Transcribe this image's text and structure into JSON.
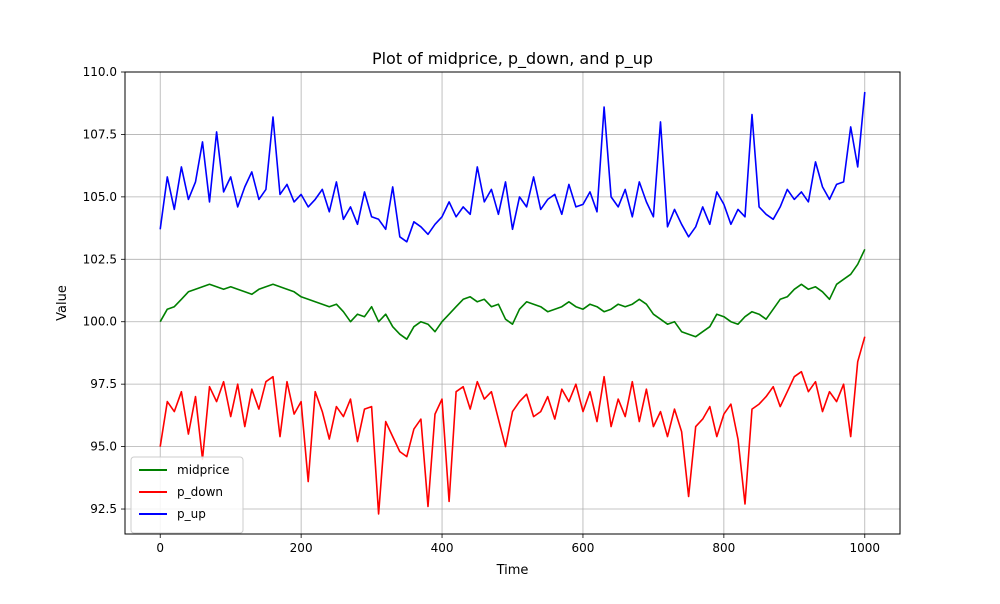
{
  "chart_data": {
    "type": "line",
    "title": "Plot of midprice, p_down, and p_up",
    "xlabel": "Time",
    "ylabel": "Value",
    "xlim": [
      -50,
      1050
    ],
    "ylim": [
      91.5,
      110.0
    ],
    "xticks": [
      0,
      200,
      400,
      600,
      800,
      1000
    ],
    "xtick_labels": [
      "0",
      "200",
      "400",
      "600",
      "800",
      "1000"
    ],
    "yticks": [
      92.5,
      95.0,
      97.5,
      100.0,
      102.5,
      105.0,
      107.5,
      110.0
    ],
    "ytick_labels": [
      "92.5",
      "95.0",
      "97.5",
      "100.0",
      "102.5",
      "105.0",
      "107.5",
      "110.0"
    ],
    "grid": true,
    "legend_position": "lower-left",
    "series": [
      {
        "name": "midprice",
        "color": "#008000",
        "x": [
          0,
          10,
          20,
          30,
          40,
          50,
          60,
          70,
          80,
          90,
          100,
          110,
          120,
          130,
          140,
          150,
          160,
          170,
          180,
          190,
          200,
          210,
          220,
          230,
          240,
          250,
          260,
          270,
          280,
          290,
          300,
          310,
          320,
          330,
          340,
          350,
          360,
          370,
          380,
          390,
          400,
          410,
          420,
          430,
          440,
          450,
          460,
          470,
          480,
          490,
          500,
          510,
          520,
          530,
          540,
          550,
          560,
          570,
          580,
          590,
          600,
          610,
          620,
          630,
          640,
          650,
          660,
          670,
          680,
          690,
          700,
          710,
          720,
          730,
          740,
          750,
          760,
          770,
          780,
          790,
          800,
          810,
          820,
          830,
          840,
          850,
          860,
          870,
          880,
          890,
          900,
          910,
          920,
          930,
          940,
          950,
          960,
          970,
          980,
          990,
          1000
        ],
        "values": [
          100.0,
          100.5,
          100.6,
          100.9,
          101.2,
          101.3,
          101.4,
          101.5,
          101.4,
          101.3,
          101.4,
          101.3,
          101.2,
          101.1,
          101.3,
          101.4,
          101.5,
          101.4,
          101.3,
          101.2,
          101.0,
          100.9,
          100.8,
          100.7,
          100.6,
          100.7,
          100.4,
          100.0,
          100.3,
          100.2,
          100.6,
          100.0,
          100.3,
          99.8,
          99.5,
          99.3,
          99.8,
          100.0,
          99.9,
          99.6,
          100.0,
          100.3,
          100.6,
          100.9,
          101.0,
          100.8,
          100.9,
          100.6,
          100.7,
          100.1,
          99.9,
          100.5,
          100.8,
          100.7,
          100.6,
          100.4,
          100.5,
          100.6,
          100.8,
          100.6,
          100.5,
          100.7,
          100.6,
          100.4,
          100.5,
          100.7,
          100.6,
          100.7,
          100.9,
          100.7,
          100.3,
          100.1,
          99.9,
          100.0,
          99.6,
          99.5,
          99.4,
          99.6,
          99.8,
          100.3,
          100.2,
          100.0,
          99.9,
          100.2,
          100.4,
          100.3,
          100.1,
          100.5,
          100.9,
          101.0,
          101.3,
          101.5,
          101.3,
          101.4,
          101.2,
          100.9,
          101.5,
          101.7,
          101.9,
          102.3,
          102.9
        ]
      },
      {
        "name": "p_down",
        "color": "#ff0000",
        "x": [
          0,
          10,
          20,
          30,
          40,
          50,
          60,
          70,
          80,
          90,
          100,
          110,
          120,
          130,
          140,
          150,
          160,
          170,
          180,
          190,
          200,
          210,
          220,
          230,
          240,
          250,
          260,
          270,
          280,
          290,
          300,
          310,
          320,
          330,
          340,
          350,
          360,
          370,
          380,
          390,
          400,
          410,
          420,
          430,
          440,
          450,
          460,
          470,
          480,
          490,
          500,
          510,
          520,
          530,
          540,
          550,
          560,
          570,
          580,
          590,
          600,
          610,
          620,
          630,
          640,
          650,
          660,
          670,
          680,
          690,
          700,
          710,
          720,
          730,
          740,
          750,
          760,
          770,
          780,
          790,
          800,
          810,
          820,
          830,
          840,
          850,
          860,
          870,
          880,
          890,
          900,
          910,
          920,
          930,
          940,
          950,
          960,
          970,
          980,
          990,
          1000
        ],
        "values": [
          95.0,
          96.8,
          96.4,
          97.2,
          95.5,
          97.0,
          94.5,
          97.4,
          96.8,
          97.6,
          96.2,
          97.5,
          95.8,
          97.3,
          96.5,
          97.6,
          97.8,
          95.4,
          97.6,
          96.3,
          96.8,
          93.6,
          97.2,
          96.4,
          95.3,
          96.6,
          96.2,
          96.9,
          95.2,
          96.5,
          96.6,
          92.3,
          96.0,
          95.4,
          94.8,
          94.6,
          95.7,
          96.1,
          92.6,
          96.3,
          96.9,
          92.8,
          97.2,
          97.4,
          96.5,
          97.6,
          96.9,
          97.2,
          96.1,
          95.0,
          96.4,
          96.8,
          97.1,
          96.2,
          96.4,
          97.0,
          96.1,
          97.3,
          96.8,
          97.5,
          96.4,
          97.2,
          96.0,
          97.8,
          95.8,
          96.9,
          96.2,
          97.6,
          96.0,
          97.3,
          95.8,
          96.4,
          95.4,
          96.5,
          95.6,
          93.0,
          95.8,
          96.1,
          96.6,
          95.4,
          96.3,
          96.7,
          95.3,
          92.7,
          96.5,
          96.7,
          97.0,
          97.4,
          96.6,
          97.2,
          97.8,
          98.0,
          97.2,
          97.6,
          96.4,
          97.2,
          96.8,
          97.5,
          95.4,
          98.4,
          99.4
        ]
      },
      {
        "name": "p_up",
        "color": "#0000ff",
        "x": [
          0,
          10,
          20,
          30,
          40,
          50,
          60,
          70,
          80,
          90,
          100,
          110,
          120,
          130,
          140,
          150,
          160,
          170,
          180,
          190,
          200,
          210,
          220,
          230,
          240,
          250,
          260,
          270,
          280,
          290,
          300,
          310,
          320,
          330,
          340,
          350,
          360,
          370,
          380,
          390,
          400,
          410,
          420,
          430,
          440,
          450,
          460,
          470,
          480,
          490,
          500,
          510,
          520,
          530,
          540,
          550,
          560,
          570,
          580,
          590,
          600,
          610,
          620,
          630,
          640,
          650,
          660,
          670,
          680,
          690,
          700,
          710,
          720,
          730,
          740,
          750,
          760,
          770,
          780,
          790,
          800,
          810,
          820,
          830,
          840,
          850,
          860,
          870,
          880,
          890,
          900,
          910,
          920,
          930,
          940,
          950,
          960,
          970,
          980,
          990,
          1000
        ],
        "values": [
          103.7,
          105.8,
          104.5,
          106.2,
          104.9,
          105.6,
          107.2,
          104.8,
          107.6,
          105.2,
          105.8,
          104.6,
          105.4,
          106.0,
          104.9,
          105.3,
          108.2,
          105.1,
          105.5,
          104.8,
          105.1,
          104.6,
          104.9,
          105.3,
          104.4,
          105.6,
          104.1,
          104.6,
          103.9,
          105.2,
          104.2,
          104.1,
          103.7,
          105.4,
          103.4,
          103.2,
          104.0,
          103.8,
          103.5,
          103.9,
          104.2,
          104.8,
          104.2,
          104.6,
          104.3,
          106.2,
          104.8,
          105.3,
          104.3,
          105.6,
          103.7,
          105.0,
          104.6,
          105.8,
          104.5,
          104.9,
          105.1,
          104.3,
          105.5,
          104.6,
          104.7,
          105.2,
          104.4,
          108.6,
          105.0,
          104.6,
          105.3,
          104.2,
          105.6,
          104.8,
          104.2,
          108.0,
          103.8,
          104.5,
          103.9,
          103.4,
          103.8,
          104.6,
          103.9,
          105.2,
          104.7,
          103.9,
          104.5,
          104.2,
          108.3,
          104.6,
          104.3,
          104.1,
          104.6,
          105.3,
          104.9,
          105.2,
          104.8,
          106.4,
          105.4,
          104.9,
          105.5,
          105.6,
          107.8,
          106.2,
          109.2
        ]
      }
    ]
  }
}
